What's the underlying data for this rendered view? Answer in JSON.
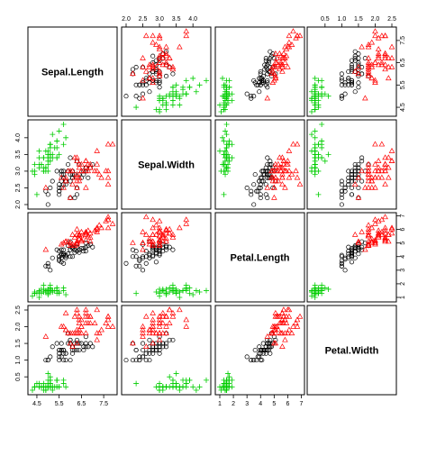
{
  "chart_data": {
    "type": "scatter",
    "variables": [
      {
        "name": "Sepal.Length",
        "range": [
          4.3,
          7.9
        ],
        "ticks": [
          4.5,
          5.5,
          6.5,
          7.5
        ],
        "tick_labels": [
          "4.5",
          "5.5",
          "6.5",
          "7.5"
        ]
      },
      {
        "name": "Sepal.Width",
        "range": [
          2.0,
          4.4
        ],
        "ticks": [
          2.0,
          2.5,
          3.0,
          3.5,
          4.0
        ],
        "tick_labels": [
          "2.0",
          "2.5",
          "3.0",
          "3.5",
          "4.0"
        ]
      },
      {
        "name": "Petal.Length",
        "range": [
          1.0,
          6.9
        ],
        "ticks": [
          1,
          2,
          3,
          4,
          5,
          6,
          7
        ],
        "tick_labels": [
          "1",
          "2",
          "3",
          "4",
          "5",
          "6",
          "7"
        ]
      },
      {
        "name": "Petal.Width",
        "range": [
          0.1,
          2.5
        ],
        "ticks": [
          0.5,
          1.0,
          1.5,
          2.0,
          2.5
        ],
        "tick_labels": [
          "0.5",
          "1.0",
          "1.5",
          "2.0",
          "2.5"
        ]
      }
    ],
    "series": [
      {
        "color": "#00cd00",
        "marker": "plus",
        "points": [
          [
            5.1,
            3.5,
            1.4,
            0.2
          ],
          [
            4.9,
            3.0,
            1.4,
            0.2
          ],
          [
            4.7,
            3.2,
            1.3,
            0.2
          ],
          [
            4.6,
            3.1,
            1.5,
            0.2
          ],
          [
            5.0,
            3.6,
            1.4,
            0.2
          ],
          [
            5.4,
            3.9,
            1.7,
            0.4
          ],
          [
            4.6,
            3.4,
            1.4,
            0.3
          ],
          [
            5.0,
            3.4,
            1.5,
            0.2
          ],
          [
            4.4,
            2.9,
            1.4,
            0.2
          ],
          [
            4.9,
            3.1,
            1.5,
            0.1
          ],
          [
            5.4,
            3.7,
            1.5,
            0.2
          ],
          [
            4.8,
            3.4,
            1.6,
            0.2
          ],
          [
            4.8,
            3.0,
            1.4,
            0.1
          ],
          [
            4.3,
            3.0,
            1.1,
            0.1
          ],
          [
            5.8,
            4.0,
            1.2,
            0.2
          ],
          [
            5.7,
            4.4,
            1.5,
            0.4
          ],
          [
            5.4,
            3.9,
            1.3,
            0.4
          ],
          [
            5.1,
            3.5,
            1.4,
            0.3
          ],
          [
            5.7,
            3.8,
            1.7,
            0.3
          ],
          [
            5.1,
            3.8,
            1.5,
            0.3
          ],
          [
            5.4,
            3.4,
            1.7,
            0.2
          ],
          [
            5.1,
            3.7,
            1.5,
            0.4
          ],
          [
            4.6,
            3.6,
            1.0,
            0.2
          ],
          [
            5.1,
            3.3,
            1.7,
            0.5
          ],
          [
            4.8,
            3.4,
            1.9,
            0.2
          ],
          [
            5.0,
            3.0,
            1.6,
            0.2
          ],
          [
            5.0,
            3.4,
            1.6,
            0.4
          ],
          [
            5.2,
            3.5,
            1.5,
            0.2
          ],
          [
            5.2,
            3.4,
            1.4,
            0.2
          ],
          [
            4.7,
            3.2,
            1.6,
            0.2
          ],
          [
            4.8,
            3.1,
            1.6,
            0.2
          ],
          [
            5.4,
            3.4,
            1.5,
            0.4
          ],
          [
            5.2,
            4.1,
            1.5,
            0.1
          ],
          [
            5.5,
            4.2,
            1.4,
            0.2
          ],
          [
            4.9,
            3.1,
            1.5,
            0.2
          ],
          [
            5.0,
            3.2,
            1.2,
            0.2
          ],
          [
            5.5,
            3.5,
            1.3,
            0.2
          ],
          [
            4.9,
            3.6,
            1.4,
            0.1
          ],
          [
            4.4,
            3.0,
            1.3,
            0.2
          ],
          [
            5.1,
            3.4,
            1.5,
            0.2
          ],
          [
            5.0,
            3.5,
            1.3,
            0.3
          ],
          [
            4.5,
            2.3,
            1.3,
            0.3
          ],
          [
            4.4,
            3.2,
            1.3,
            0.2
          ],
          [
            5.0,
            3.5,
            1.6,
            0.6
          ],
          [
            5.1,
            3.8,
            1.9,
            0.4
          ],
          [
            4.8,
            3.0,
            1.4,
            0.3
          ],
          [
            5.1,
            3.8,
            1.6,
            0.2
          ],
          [
            4.6,
            3.2,
            1.4,
            0.2
          ],
          [
            5.3,
            3.7,
            1.5,
            0.2
          ],
          [
            5.0,
            3.3,
            1.4,
            0.2
          ]
        ]
      },
      {
        "color": "#000000",
        "marker": "circle",
        "points": [
          [
            7.0,
            3.2,
            4.7,
            1.4
          ],
          [
            6.4,
            3.2,
            4.5,
            1.5
          ],
          [
            6.9,
            3.1,
            4.9,
            1.5
          ],
          [
            5.5,
            2.3,
            4.0,
            1.3
          ],
          [
            6.5,
            2.8,
            4.6,
            1.5
          ],
          [
            5.7,
            2.8,
            4.5,
            1.3
          ],
          [
            6.3,
            3.3,
            4.7,
            1.6
          ],
          [
            4.9,
            2.4,
            3.3,
            1.0
          ],
          [
            6.6,
            2.9,
            4.6,
            1.3
          ],
          [
            5.2,
            2.7,
            3.9,
            1.4
          ],
          [
            5.0,
            2.0,
            3.5,
            1.0
          ],
          [
            5.9,
            3.0,
            4.2,
            1.5
          ],
          [
            6.0,
            2.2,
            4.0,
            1.0
          ],
          [
            6.1,
            2.9,
            4.7,
            1.4
          ],
          [
            5.6,
            2.9,
            3.6,
            1.3
          ],
          [
            6.7,
            3.1,
            4.4,
            1.4
          ],
          [
            5.6,
            3.0,
            4.5,
            1.5
          ],
          [
            5.8,
            2.7,
            4.1,
            1.0
          ],
          [
            6.2,
            2.2,
            4.5,
            1.5
          ],
          [
            5.6,
            2.5,
            3.9,
            1.1
          ],
          [
            5.9,
            3.2,
            4.8,
            1.8
          ],
          [
            6.1,
            2.8,
            4.0,
            1.3
          ],
          [
            6.3,
            2.5,
            4.9,
            1.5
          ],
          [
            6.1,
            2.8,
            4.7,
            1.2
          ],
          [
            6.4,
            2.9,
            4.3,
            1.3
          ],
          [
            6.6,
            3.0,
            4.4,
            1.4
          ],
          [
            6.8,
            2.8,
            4.8,
            1.4
          ],
          [
            6.7,
            3.0,
            5.0,
            1.7
          ],
          [
            6.0,
            2.9,
            4.5,
            1.5
          ],
          [
            5.7,
            2.6,
            3.5,
            1.0
          ],
          [
            5.5,
            2.4,
            3.8,
            1.1
          ],
          [
            5.5,
            2.4,
            3.7,
            1.0
          ],
          [
            5.8,
            2.7,
            3.9,
            1.2
          ],
          [
            6.0,
            2.7,
            5.1,
            1.6
          ],
          [
            5.4,
            3.0,
            4.5,
            1.5
          ],
          [
            6.0,
            3.4,
            4.5,
            1.6
          ],
          [
            6.7,
            3.1,
            4.7,
            1.5
          ],
          [
            6.3,
            2.3,
            4.4,
            1.3
          ],
          [
            5.6,
            3.0,
            4.1,
            1.3
          ],
          [
            5.5,
            2.5,
            4.0,
            1.3
          ],
          [
            5.5,
            2.6,
            4.4,
            1.2
          ],
          [
            6.1,
            3.0,
            4.6,
            1.4
          ],
          [
            5.8,
            2.6,
            4.0,
            1.2
          ],
          [
            5.0,
            2.3,
            3.3,
            1.0
          ],
          [
            5.6,
            2.7,
            4.2,
            1.3
          ],
          [
            5.7,
            3.0,
            4.2,
            1.2
          ],
          [
            5.7,
            2.9,
            4.2,
            1.3
          ],
          [
            6.2,
            2.9,
            4.3,
            1.3
          ],
          [
            5.1,
            2.5,
            3.0,
            1.1
          ],
          [
            5.7,
            2.8,
            4.1,
            1.3
          ]
        ]
      },
      {
        "color": "#ff0000",
        "marker": "triangle",
        "points": [
          [
            6.3,
            3.3,
            6.0,
            2.5
          ],
          [
            5.8,
            2.7,
            5.1,
            1.9
          ],
          [
            7.1,
            3.0,
            5.9,
            2.1
          ],
          [
            6.3,
            2.9,
            5.6,
            1.8
          ],
          [
            6.5,
            3.0,
            5.8,
            2.2
          ],
          [
            7.6,
            3.0,
            6.6,
            2.1
          ],
          [
            4.9,
            2.5,
            4.5,
            1.7
          ],
          [
            7.3,
            2.9,
            6.3,
            1.8
          ],
          [
            6.7,
            2.5,
            5.8,
            1.8
          ],
          [
            7.2,
            3.6,
            6.1,
            2.5
          ],
          [
            6.5,
            3.2,
            5.1,
            2.0
          ],
          [
            6.4,
            2.7,
            5.3,
            1.9
          ],
          [
            6.8,
            3.0,
            5.5,
            2.1
          ],
          [
            5.7,
            2.5,
            5.0,
            2.0
          ],
          [
            5.8,
            2.8,
            5.1,
            2.4
          ],
          [
            6.4,
            3.2,
            5.3,
            2.3
          ],
          [
            6.5,
            3.0,
            5.5,
            1.8
          ],
          [
            7.7,
            3.8,
            6.7,
            2.2
          ],
          [
            7.7,
            2.6,
            6.9,
            2.3
          ],
          [
            6.0,
            2.2,
            5.0,
            1.5
          ],
          [
            6.9,
            3.2,
            5.7,
            2.3
          ],
          [
            5.6,
            2.8,
            4.9,
            2.0
          ],
          [
            7.7,
            2.8,
            6.7,
            2.0
          ],
          [
            6.3,
            2.7,
            4.9,
            1.8
          ],
          [
            6.7,
            3.3,
            5.7,
            2.1
          ],
          [
            7.2,
            3.2,
            6.0,
            1.8
          ],
          [
            6.2,
            2.8,
            4.8,
            1.8
          ],
          [
            6.1,
            3.0,
            4.9,
            1.8
          ],
          [
            6.4,
            2.8,
            5.6,
            2.1
          ],
          [
            7.2,
            3.0,
            5.8,
            1.6
          ],
          [
            7.4,
            2.8,
            6.1,
            1.9
          ],
          [
            7.9,
            3.8,
            6.4,
            2.0
          ],
          [
            6.4,
            2.8,
            5.6,
            2.2
          ],
          [
            6.3,
            2.8,
            5.1,
            1.5
          ],
          [
            6.1,
            2.6,
            5.6,
            1.4
          ],
          [
            7.7,
            3.0,
            6.1,
            2.3
          ],
          [
            6.3,
            3.4,
            5.6,
            2.4
          ],
          [
            6.4,
            3.1,
            5.5,
            1.8
          ],
          [
            6.0,
            3.0,
            4.8,
            1.8
          ],
          [
            6.9,
            3.1,
            5.4,
            2.1
          ],
          [
            6.7,
            3.1,
            5.6,
            2.4
          ],
          [
            6.9,
            3.1,
            5.1,
            2.3
          ],
          [
            5.8,
            2.7,
            5.1,
            1.9
          ],
          [
            6.8,
            3.2,
            5.9,
            2.3
          ],
          [
            6.7,
            3.3,
            5.7,
            2.5
          ],
          [
            6.7,
            3.0,
            5.2,
            2.3
          ],
          [
            6.3,
            2.5,
            5.0,
            1.9
          ],
          [
            6.5,
            3.0,
            5.2,
            2.0
          ],
          [
            6.2,
            3.4,
            5.4,
            2.3
          ],
          [
            5.9,
            3.0,
            5.1,
            1.8
          ]
        ]
      }
    ],
    "grid": false,
    "legend": "none"
  }
}
